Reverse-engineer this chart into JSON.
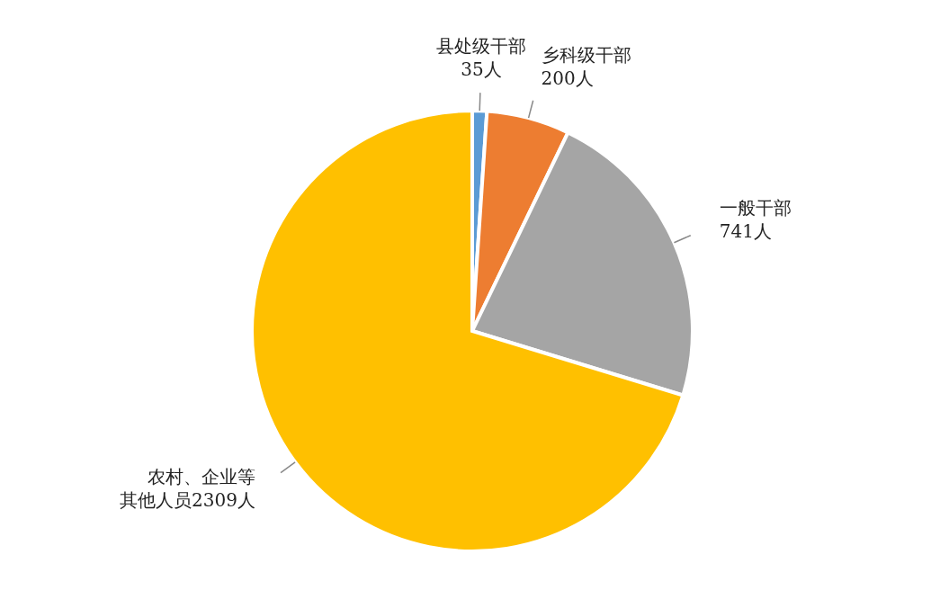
{
  "chart_data": {
    "type": "pie",
    "categories": [
      "县处级干部",
      "乡科级干部",
      "一般干部",
      "农村、企业等其他人员"
    ],
    "values": [
      35,
      200,
      741,
      2309
    ],
    "colors": [
      "#5b9bd5",
      "#ed7d31",
      "#a5a5a5",
      "#ffc000"
    ],
    "value_labels": [
      "35人",
      "200人",
      "741人",
      "2309人"
    ],
    "legend": false
  }
}
